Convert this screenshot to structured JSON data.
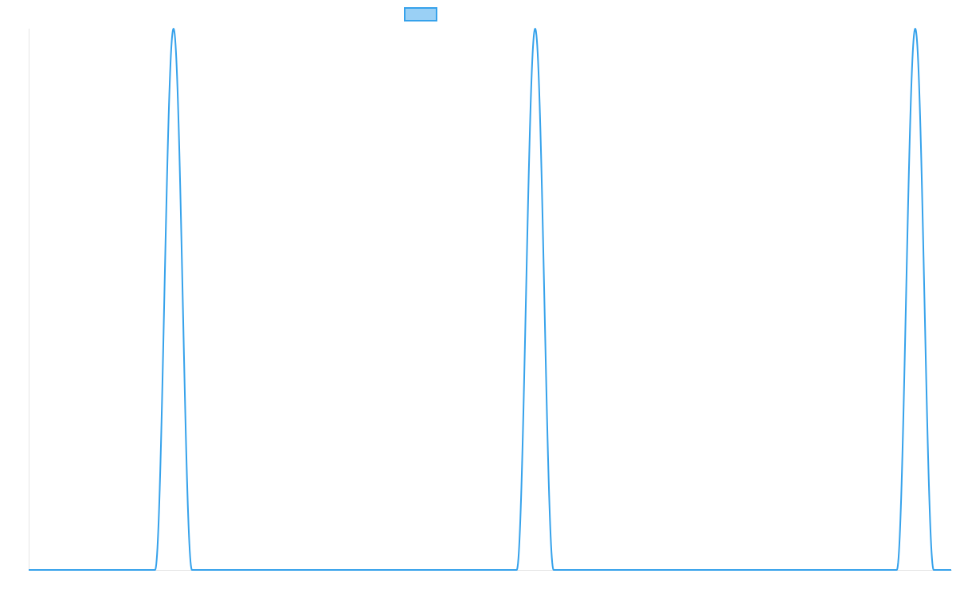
{
  "chart_data": {
    "type": "line",
    "title": "",
    "xlabel": "",
    "ylabel": "",
    "xlim": [
      0,
      1000
    ],
    "ylim": [
      0,
      1
    ],
    "grid": false,
    "legend": {
      "placement": "top-center",
      "label": ""
    },
    "series": [
      {
        "color": "#36a2eb",
        "fill": "#9ad0f5",
        "baseline": 0,
        "pulses": [
          {
            "center": 157,
            "half_width": 20,
            "peak": 1
          },
          {
            "center": 549,
            "half_width": 20,
            "peak": 1
          },
          {
            "center": 961,
            "half_width": 20,
            "peak": 1
          }
        ]
      }
    ]
  }
}
